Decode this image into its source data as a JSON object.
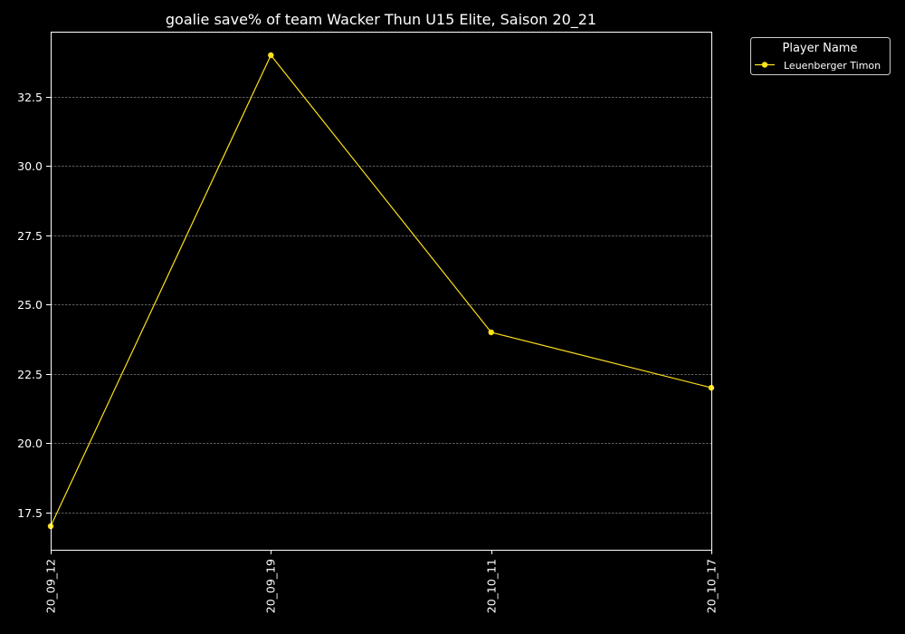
{
  "chart_data": {
    "type": "line",
    "title": "goalie save% of team Wacker Thun U15 Elite, Saison 20_21",
    "xlabel": "",
    "ylabel": "",
    "categories": [
      "20_09_12",
      "20_09_19",
      "20_10_11",
      "20_10_17"
    ],
    "series": [
      {
        "name": "Leuenberger Timon",
        "values": [
          17.0,
          34.0,
          24.0,
          22.0
        ],
        "color": "#ffe119"
      }
    ],
    "ylim": [
      16.15,
      34.85
    ],
    "yticks": [
      17.5,
      20.0,
      22.5,
      25.0,
      27.5,
      30.0,
      32.5
    ],
    "ytick_labels": [
      "17.5",
      "20.0",
      "22.5",
      "25.0",
      "27.5",
      "30.0",
      "32.5"
    ],
    "grid": true,
    "legend": {
      "title": "Player Name",
      "placement": "outside-top-right"
    },
    "colors": {
      "background": "#000000",
      "foreground": "#ffffff",
      "grid": "#808080"
    }
  }
}
